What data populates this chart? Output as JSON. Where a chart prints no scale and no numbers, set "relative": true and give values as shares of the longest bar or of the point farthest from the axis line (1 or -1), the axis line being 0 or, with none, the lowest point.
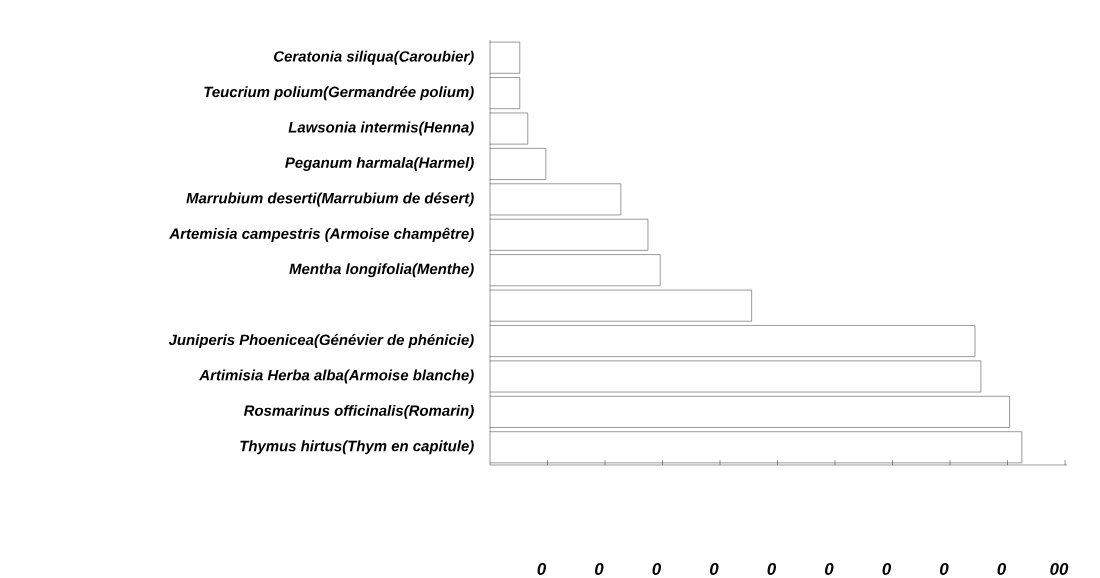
{
  "chart_data": {
    "type": "bar",
    "orientation": "horizontal",
    "relative": true,
    "categories": [
      "Ceratonia siliqua(Caroubier)",
      "Teucrium polium(Germandrée polium)",
      "Lawsonia intermis(Henna)",
      "Peganum harmala(Harmel)",
      "Marrubium deserti(Marrubium de désert)",
      "Artemisia campestris (Armoise champêtre)",
      "Mentha longifolia(Menthe)",
      null,
      "Juniperis Phoenicea(Génévier de phénicie)",
      "Artimisia Herba alba(Armoise blanche)",
      "Rosmarinus officinalis(Romarin)",
      "Thymus hirtus(Thym en capitule)"
    ],
    "values": [
      0.056,
      0.056,
      0.071,
      0.105,
      0.246,
      0.297,
      0.32,
      0.492,
      0.912,
      0.923,
      0.977,
      1
    ],
    "color": "#ffffff",
    "annotations": [
      "0",
      "0",
      "0",
      "0",
      "0",
      "0",
      "0",
      "0",
      "0",
      "00"
    ]
  }
}
